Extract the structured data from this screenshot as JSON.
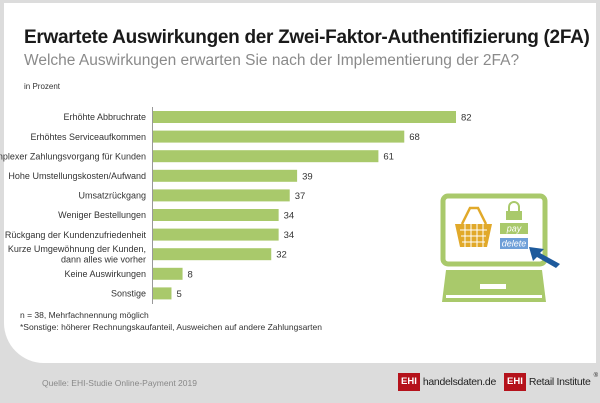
{
  "title": "Erwartete Auswirkungen der Zwei-Faktor-Authentifizierung (2FA)",
  "subtitle": "Welche Auswirkungen erwarten Sie nach der Implementierung der 2FA?",
  "notes": [
    "n = 38, Mehrfachnennung möglich",
    "*Sonstige: höherer Rechnungskaufanteil, Ausweichen auf andere Zahlungsarten"
  ],
  "source": "Quelle: EHI-Studie Online-Payment 2019",
  "logos": {
    "ehi": "EHI",
    "handelsdaten": "handelsdaten.de",
    "retail": "Retail Institute",
    "reg": "®"
  },
  "illustration": {
    "pay": "pay",
    "delete": "delete"
  },
  "colors": {
    "bar": "#a9c96b",
    "axis": "#999999"
  },
  "chart_data": {
    "type": "bar",
    "orientation": "horizontal",
    "title": "Erwartete Auswirkungen der Zwei-Faktor-Authentifizierung (2FA)",
    "ylabel": "in Prozent",
    "categories": [
      [
        "Erhöhte Abbruchrate"
      ],
      [
        "Erhöhtes Serviceaufkommen"
      ],
      [
        "Komplexer Zahlungsvorgang für Kunden"
      ],
      [
        "Hohe Umstellungskosten/Aufwand"
      ],
      [
        "Umsatzrückgang"
      ],
      [
        "Weniger Bestellungen"
      ],
      [
        "Rückgang der Kundenzufriedenheit"
      ],
      [
        "Kurze Umgewöhnung der Kunden,",
        "dann alles wie vorher"
      ],
      [
        "Keine Auswirkungen"
      ],
      [
        "Sonstige"
      ]
    ],
    "values": [
      82,
      68,
      61,
      39,
      37,
      34,
      34,
      32,
      8,
      5
    ],
    "xlim": [
      0,
      100
    ],
    "grid": false
  }
}
